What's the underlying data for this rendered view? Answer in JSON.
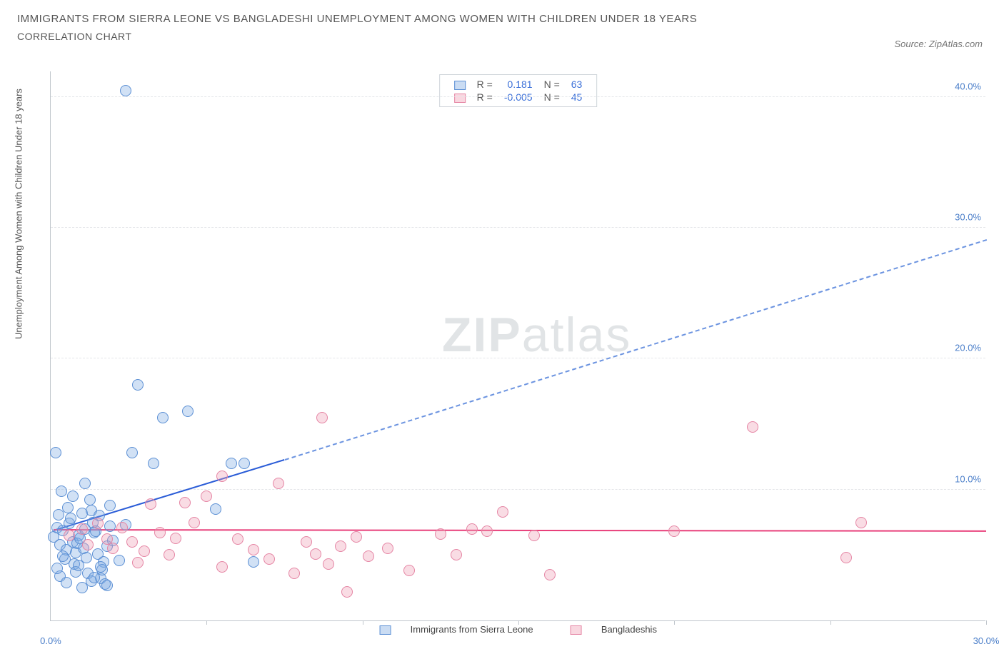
{
  "title_line1": "IMMIGRANTS FROM SIERRA LEONE VS BANGLADESHI UNEMPLOYMENT AMONG WOMEN WITH CHILDREN UNDER 18 YEARS",
  "title_line2": "CORRELATION CHART",
  "source_label": "Source: ZipAtlas.com",
  "y_axis_label": "Unemployment Among Women with Children Under 18 years",
  "watermark_bold": "ZIP",
  "watermark_rest": "atlas",
  "chart": {
    "type": "scatter",
    "xlim": [
      0,
      30
    ],
    "ylim": [
      0,
      42
    ],
    "x_ticks": [
      0.0,
      30.0
    ],
    "x_tick_labels": [
      "0.0%",
      "30.0%"
    ],
    "y_ticks": [
      10.0,
      20.0,
      30.0,
      40.0
    ],
    "y_tick_labels": [
      "10.0%",
      "20.0%",
      "30.0%",
      "40.0%"
    ],
    "x_grid_positions": [
      5,
      10,
      15,
      20,
      25,
      30
    ],
    "background_color": "#ffffff",
    "grid_color": "#e4e6e9",
    "border_color": "#c0c6cc",
    "text_color": "#555555",
    "tick_color": "#4a7ec9",
    "dot_radius": 8,
    "series": [
      {
        "name": "Immigrants from Sierra Leone",
        "color_fill": "rgba(122,168,226,0.35)",
        "color_stroke": "#5b8fd4",
        "class": "blue",
        "R": "0.181",
        "N": "63",
        "trend": {
          "x1": 0.1,
          "y1": 6.8,
          "x2": 7.5,
          "y2": 12.2,
          "x2_dash": 30.0,
          "y2_dash": 29.0
        },
        "points": [
          [
            0.1,
            6.4
          ],
          [
            0.2,
            7.1
          ],
          [
            0.3,
            5.8
          ],
          [
            0.15,
            12.8
          ],
          [
            0.4,
            6.9
          ],
          [
            0.25,
            8.1
          ],
          [
            0.5,
            5.4
          ],
          [
            0.35,
            9.9
          ],
          [
            0.6,
            7.4
          ],
          [
            0.45,
            4.7
          ],
          [
            0.7,
            6.0
          ],
          [
            0.55,
            8.6
          ],
          [
            0.8,
            5.2
          ],
          [
            0.65,
            7.8
          ],
          [
            0.9,
            6.5
          ],
          [
            0.75,
            4.3
          ],
          [
            1.0,
            8.2
          ],
          [
            0.85,
            5.9
          ],
          [
            1.1,
            7.0
          ],
          [
            0.95,
            6.3
          ],
          [
            1.2,
            3.6
          ],
          [
            1.05,
            5.5
          ],
          [
            1.3,
            8.4
          ],
          [
            1.15,
            4.8
          ],
          [
            1.4,
            6.7
          ],
          [
            1.25,
            9.2
          ],
          [
            1.5,
            5.1
          ],
          [
            1.35,
            7.5
          ],
          [
            1.6,
            3.2
          ],
          [
            1.45,
            6.8
          ],
          [
            1.7,
            4.5
          ],
          [
            1.55,
            8.0
          ],
          [
            1.8,
            5.7
          ],
          [
            1.65,
            3.9
          ],
          [
            1.9,
            7.2
          ],
          [
            1.75,
            2.8
          ],
          [
            2.0,
            6.1
          ],
          [
            0.3,
            3.4
          ],
          [
            0.5,
            2.9
          ],
          [
            0.8,
            3.7
          ],
          [
            1.0,
            2.5
          ],
          [
            1.3,
            3.0
          ],
          [
            1.6,
            4.1
          ],
          [
            2.2,
            4.6
          ],
          [
            2.4,
            7.3
          ],
          [
            0.7,
            9.5
          ],
          [
            1.1,
            10.5
          ],
          [
            1.9,
            8.8
          ],
          [
            2.8,
            18.0
          ],
          [
            2.6,
            12.8
          ],
          [
            2.4,
            40.5
          ],
          [
            3.6,
            15.5
          ],
          [
            3.3,
            12.0
          ],
          [
            4.4,
            16.0
          ],
          [
            5.3,
            8.5
          ],
          [
            5.8,
            12.0
          ],
          [
            6.5,
            4.5
          ],
          [
            6.2,
            12.0
          ],
          [
            0.2,
            4.0
          ],
          [
            0.4,
            4.9
          ],
          [
            0.9,
            4.2
          ],
          [
            1.4,
            3.3
          ],
          [
            1.8,
            2.7
          ]
        ]
      },
      {
        "name": "Bangladeshis",
        "color_fill": "rgba(239,154,178,0.35)",
        "color_stroke": "#e585a4",
        "class": "pink",
        "R": "-0.005",
        "N": "45",
        "trend": {
          "x1": 0.1,
          "y1": 6.9,
          "x2": 30.0,
          "y2": 6.8
        },
        "points": [
          [
            0.6,
            6.5
          ],
          [
            1.0,
            7.0
          ],
          [
            1.2,
            5.8
          ],
          [
            1.5,
            7.4
          ],
          [
            1.8,
            6.2
          ],
          [
            2.0,
            5.5
          ],
          [
            2.3,
            7.1
          ],
          [
            2.6,
            6.0
          ],
          [
            3.0,
            5.3
          ],
          [
            3.2,
            8.9
          ],
          [
            3.5,
            6.7
          ],
          [
            3.8,
            5.0
          ],
          [
            4.0,
            6.3
          ],
          [
            4.3,
            9.0
          ],
          [
            4.6,
            7.5
          ],
          [
            5.0,
            9.5
          ],
          [
            5.5,
            4.1
          ],
          [
            6.0,
            6.2
          ],
          [
            6.5,
            5.4
          ],
          [
            7.0,
            4.7
          ],
          [
            7.3,
            10.5
          ],
          [
            7.8,
            3.6
          ],
          [
            8.2,
            6.0
          ],
          [
            8.5,
            5.1
          ],
          [
            8.7,
            15.5
          ],
          [
            8.9,
            4.3
          ],
          [
            9.3,
            5.7
          ],
          [
            9.5,
            2.2
          ],
          [
            9.8,
            6.4
          ],
          [
            10.2,
            4.9
          ],
          [
            10.8,
            5.5
          ],
          [
            11.5,
            3.8
          ],
          [
            12.5,
            6.6
          ],
          [
            13.0,
            5.0
          ],
          [
            13.5,
            7.0
          ],
          [
            14.0,
            6.8
          ],
          [
            14.5,
            8.3
          ],
          [
            15.5,
            6.5
          ],
          [
            16.0,
            3.5
          ],
          [
            20.0,
            6.8
          ],
          [
            22.5,
            14.8
          ],
          [
            25.5,
            4.8
          ],
          [
            26.0,
            7.5
          ],
          [
            5.5,
            11.0
          ],
          [
            2.8,
            4.4
          ]
        ]
      }
    ],
    "legend_top": {
      "r_label": "R =",
      "n_label": "N ="
    },
    "legend_bottom": [
      {
        "class": "blue",
        "label": "Immigrants from Sierra Leone"
      },
      {
        "class": "pink",
        "label": "Bangladeshis"
      }
    ]
  }
}
